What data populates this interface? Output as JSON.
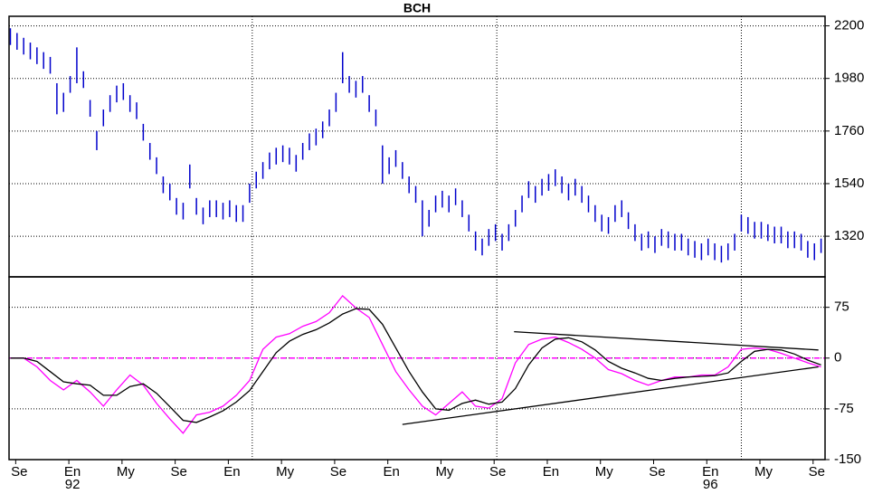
{
  "chart_data": [
    {
      "type": "hilo",
      "title": "BCH",
      "color": "#0000cc",
      "grid": true,
      "xlim": [
        7.5,
        68.9
      ],
      "ylim": [
        1150,
        2240
      ],
      "yticks": [
        1320,
        1540,
        1760,
        1980,
        2200
      ],
      "xgrid": [
        25.8,
        44.2,
        62.6
      ],
      "x": [
        7.6,
        8.1,
        8.6,
        9.1,
        9.6,
        10.1,
        10.6,
        11.1,
        11.6,
        12.1,
        12.6,
        13.1,
        13.6,
        14.1,
        14.6,
        15.1,
        15.6,
        16.1,
        16.6,
        17.1,
        17.6,
        18.1,
        18.6,
        19.1,
        19.6,
        20.1,
        20.6,
        21.1,
        21.6,
        22.1,
        22.6,
        23.1,
        23.6,
        24.1,
        24.6,
        25.1,
        25.6,
        26.1,
        26.6,
        27.1,
        27.6,
        28.1,
        28.6,
        29.1,
        29.6,
        30.1,
        30.6,
        31.1,
        31.6,
        32.1,
        32.6,
        33.1,
        33.6,
        34.1,
        34.6,
        35.1,
        35.6,
        36.1,
        36.6,
        37.1,
        37.6,
        38.1,
        38.6,
        39.1,
        39.6,
        40.1,
        40.6,
        41.1,
        41.6,
        42.1,
        42.6,
        43.1,
        43.6,
        44.1,
        44.6,
        45.1,
        45.6,
        46.1,
        46.6,
        47.1,
        47.6,
        48.1,
        48.6,
        49.1,
        49.6,
        50.1,
        50.6,
        51.1,
        51.6,
        52.1,
        52.6,
        53.1,
        53.6,
        54.1,
        54.6,
        55.1,
        55.6,
        56.1,
        56.6,
        57.1,
        57.6,
        58.1,
        58.6,
        59.1,
        59.6,
        60.1,
        60.6,
        61.1,
        61.6,
        62.1,
        62.6,
        63.1,
        63.6,
        64.1,
        64.6,
        65.1,
        65.6,
        66.1,
        66.6,
        67.1,
        67.6,
        68.1,
        68.6
      ],
      "high": [
        2190,
        2170,
        2150,
        2130,
        2110,
        2090,
        2070,
        1960,
        1920,
        1990,
        2110,
        2010,
        1890,
        1760,
        1850,
        1910,
        1950,
        1960,
        1910,
        1880,
        1790,
        1710,
        1650,
        1570,
        1540,
        1480,
        1460,
        1620,
        1480,
        1440,
        1470,
        1470,
        1460,
        1470,
        1450,
        1450,
        1540,
        1590,
        1630,
        1670,
        1690,
        1700,
        1690,
        1660,
        1710,
        1750,
        1770,
        1800,
        1850,
        1920,
        2090,
        1990,
        1970,
        1990,
        1910,
        1850,
        1700,
        1650,
        1680,
        1630,
        1570,
        1530,
        1470,
        1430,
        1490,
        1510,
        1490,
        1520,
        1470,
        1410,
        1340,
        1310,
        1350,
        1370,
        1330,
        1370,
        1430,
        1490,
        1550,
        1530,
        1560,
        1580,
        1600,
        1570,
        1540,
        1560,
        1530,
        1490,
        1450,
        1410,
        1400,
        1450,
        1470,
        1420,
        1370,
        1330,
        1340,
        1320,
        1350,
        1340,
        1330,
        1330,
        1310,
        1300,
        1290,
        1310,
        1290,
        1280,
        1290,
        1330,
        1410,
        1400,
        1380,
        1380,
        1370,
        1360,
        1360,
        1340,
        1340,
        1330,
        1300,
        1290,
        1310
      ],
      "low": [
        2120,
        2100,
        2080,
        2060,
        2040,
        2020,
        2000,
        1830,
        1840,
        1920,
        1960,
        1940,
        1820,
        1680,
        1780,
        1840,
        1880,
        1890,
        1840,
        1810,
        1720,
        1640,
        1580,
        1500,
        1470,
        1410,
        1390,
        1520,
        1410,
        1370,
        1400,
        1400,
        1390,
        1400,
        1380,
        1380,
        1460,
        1520,
        1560,
        1600,
        1620,
        1630,
        1620,
        1590,
        1640,
        1680,
        1700,
        1730,
        1780,
        1840,
        1960,
        1920,
        1900,
        1920,
        1840,
        1780,
        1540,
        1580,
        1610,
        1560,
        1500,
        1460,
        1320,
        1360,
        1420,
        1440,
        1420,
        1450,
        1400,
        1340,
        1260,
        1240,
        1280,
        1300,
        1260,
        1300,
        1360,
        1420,
        1480,
        1460,
        1490,
        1510,
        1530,
        1500,
        1470,
        1490,
        1460,
        1420,
        1380,
        1340,
        1330,
        1380,
        1400,
        1350,
        1300,
        1260,
        1270,
        1250,
        1280,
        1270,
        1260,
        1260,
        1240,
        1230,
        1220,
        1240,
        1220,
        1210,
        1220,
        1260,
        1340,
        1330,
        1310,
        1310,
        1300,
        1290,
        1290,
        1270,
        1270,
        1260,
        1230,
        1220,
        1250
      ]
    },
    {
      "type": "line",
      "grid": true,
      "xlim": [
        7.5,
        68.9
      ],
      "ylim": [
        -150,
        120
      ],
      "yticks": [
        -150,
        -75,
        0,
        75
      ],
      "xgrid": [
        25.8,
        44.2,
        62.6
      ],
      "hline": 0,
      "hline_color": "#ff00ff",
      "xticks": [
        {
          "value": 8,
          "label": "Se"
        },
        {
          "value": 12,
          "label": "En"
        },
        {
          "value": 16,
          "label": "My"
        },
        {
          "value": 20,
          "label": "Se"
        },
        {
          "value": 24,
          "label": "En"
        },
        {
          "value": 28,
          "label": "My"
        },
        {
          "value": 32,
          "label": "Se"
        },
        {
          "value": 36,
          "label": "En"
        },
        {
          "value": 40,
          "label": "My"
        },
        {
          "value": 44,
          "label": "Se"
        },
        {
          "value": 48,
          "label": "En"
        },
        {
          "value": 52,
          "label": "My"
        },
        {
          "value": 56,
          "label": "Se"
        },
        {
          "value": 60,
          "label": "En"
        },
        {
          "value": 64,
          "label": "My"
        },
        {
          "value": 68,
          "label": "Se"
        }
      ],
      "xtick_sublabels": [
        {
          "value": 12,
          "label": "92"
        },
        {
          "value": 60,
          "label": "96"
        }
      ],
      "x": [
        7.6,
        8.6,
        9.6,
        10.6,
        11.6,
        12.6,
        13.6,
        14.6,
        15.6,
        16.6,
        17.6,
        18.6,
        19.6,
        20.6,
        21.6,
        22.6,
        23.6,
        24.6,
        25.6,
        26.6,
        27.6,
        28.6,
        29.6,
        30.6,
        31.6,
        32.6,
        33.6,
        34.6,
        35.6,
        36.6,
        37.6,
        38.6,
        39.6,
        40.6,
        41.6,
        42.6,
        43.6,
        44.6,
        45.6,
        46.6,
        47.6,
        48.6,
        49.6,
        50.6,
        51.6,
        52.6,
        53.6,
        54.6,
        55.6,
        56.6,
        57.6,
        58.6,
        59.6,
        60.6,
        61.6,
        62.6,
        63.6,
        64.6,
        65.6,
        66.6,
        67.6,
        68.6
      ],
      "series": [
        {
          "color": "#ff00ff",
          "values": [
            0,
            0,
            -13,
            -33,
            -47,
            -33,
            -50,
            -71,
            -47,
            -25,
            -40,
            -67,
            -90,
            -111,
            -84,
            -80,
            -71,
            -55,
            -33,
            13,
            31,
            36,
            47,
            54,
            67,
            92,
            74,
            60,
            20,
            -20,
            -47,
            -71,
            -84,
            -67,
            -50,
            -71,
            -74,
            -60,
            -7,
            20,
            28,
            31,
            23,
            13,
            0,
            -17,
            -23,
            -33,
            -40,
            -33,
            -28,
            -28,
            -25,
            -25,
            -13,
            13,
            15,
            13,
            7,
            0,
            -7,
            -13
          ]
        },
        {
          "color": "#000000",
          "values": [
            0,
            0,
            -5,
            -20,
            -35,
            -38,
            -40,
            -55,
            -55,
            -42,
            -38,
            -52,
            -72,
            -92,
            -95,
            -87,
            -78,
            -65,
            -48,
            -20,
            8,
            25,
            35,
            42,
            52,
            65,
            73,
            72,
            50,
            15,
            -20,
            -50,
            -75,
            -77,
            -67,
            -62,
            -68,
            -65,
            -45,
            -10,
            15,
            28,
            30,
            24,
            12,
            -5,
            -15,
            -22,
            -30,
            -33,
            -30,
            -28,
            -27,
            -26,
            -22,
            -5,
            10,
            13,
            12,
            6,
            -3,
            -10
          ]
        }
      ],
      "trendlines": [
        {
          "x": [
            45.5,
            68.4
          ],
          "values": [
            39,
            12
          ]
        },
        {
          "x": [
            37.1,
            68.4
          ],
          "values": [
            -98,
            -13
          ]
        }
      ]
    }
  ]
}
